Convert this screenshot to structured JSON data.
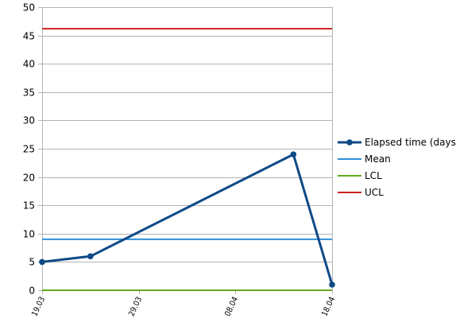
{
  "chart_data": {
    "type": "line",
    "title": "",
    "xlabel": "",
    "ylabel": "",
    "xlim": [
      "2020-03-19",
      "2020-04-18"
    ],
    "ylim": [
      0,
      50
    ],
    "y_ticks": [
      0,
      5,
      10,
      15,
      20,
      25,
      30,
      35,
      40,
      45,
      50
    ],
    "x_ticks": [
      {
        "date": "2020-03-19",
        "label": "19.03"
      },
      {
        "date": "2020-03-29",
        "label": "29.03"
      },
      {
        "date": "2020-04-08",
        "label": "08.04"
      },
      {
        "date": "2020-04-18",
        "label": "18.04"
      }
    ],
    "grid": {
      "horizontal": true,
      "vertical": false
    },
    "legend_position": "right",
    "series": [
      {
        "name": "Elapsed time (days)",
        "color": "#0f4a86",
        "marker": "circle",
        "points": [
          {
            "x": "2020-03-19",
            "y": 5
          },
          {
            "x": "2020-03-24",
            "y": 6
          },
          {
            "x": "2020-04-14",
            "y": 24
          },
          {
            "x": "2020-04-18",
            "y": 1
          }
        ]
      },
      {
        "name": "Mean",
        "color": "#2f8fd8",
        "marker": "none",
        "points": [
          {
            "x": "2020-03-19",
            "y": 9
          },
          {
            "x": "2020-04-18",
            "y": 9
          }
        ]
      },
      {
        "name": "LCL",
        "color": "#63a91f",
        "marker": "none",
        "points": [
          {
            "x": "2020-03-19",
            "y": 0
          },
          {
            "x": "2020-04-18",
            "y": 0
          }
        ]
      },
      {
        "name": "UCL",
        "color": "#cc1f1f",
        "marker": "none",
        "points": [
          {
            "x": "2020-03-19",
            "y": 46.2
          },
          {
            "x": "2020-04-18",
            "y": 46.2
          }
        ]
      }
    ]
  }
}
